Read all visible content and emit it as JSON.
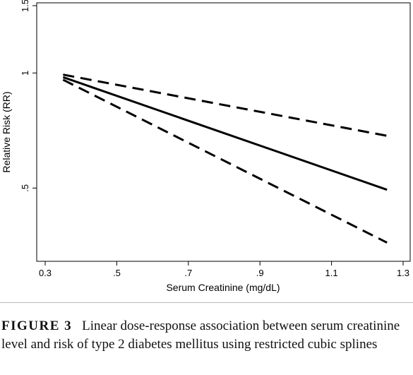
{
  "chart_data": {
    "type": "line",
    "xlabel": "Serum Creatinine (mg/dL)",
    "ylabel": "Relative Risk (RR)",
    "xlim": [
      0.3,
      1.3
    ],
    "ylim_log": [
      0.33,
      1.5
    ],
    "yscale": "log",
    "x_ticks": [
      {
        "value": 0.3,
        "label": "0.3"
      },
      {
        "value": 0.5,
        "label": ".5"
      },
      {
        "value": 0.7,
        "label": ".7"
      },
      {
        "value": 0.9,
        "label": ".9"
      },
      {
        "value": 1.1,
        "label": "1.1"
      },
      {
        "value": 1.3,
        "label": "1.3"
      }
    ],
    "y_ticks": [
      {
        "value": 0.5,
        "label": ".5"
      },
      {
        "value": 1.0,
        "label": "1"
      },
      {
        "value": 1.5,
        "label": "1.5"
      }
    ],
    "grid": false,
    "legend": "none",
    "series": [
      {
        "style": "solid",
        "x": [
          0.35,
          1.255
        ],
        "y": [
          0.975,
          0.495
        ]
      },
      {
        "style": "dashed",
        "x": [
          0.35,
          1.255
        ],
        "y": [
          0.99,
          0.685
        ]
      },
      {
        "style": "dashed",
        "x": [
          0.35,
          1.255
        ],
        "y": [
          0.96,
          0.36
        ]
      }
    ],
    "color": "#000000"
  },
  "caption": {
    "label": "FIGURE 3",
    "text": "Linear dose-response association between serum creatinine level and risk of type 2 diabetes mellitus using restricted cubic splines"
  }
}
